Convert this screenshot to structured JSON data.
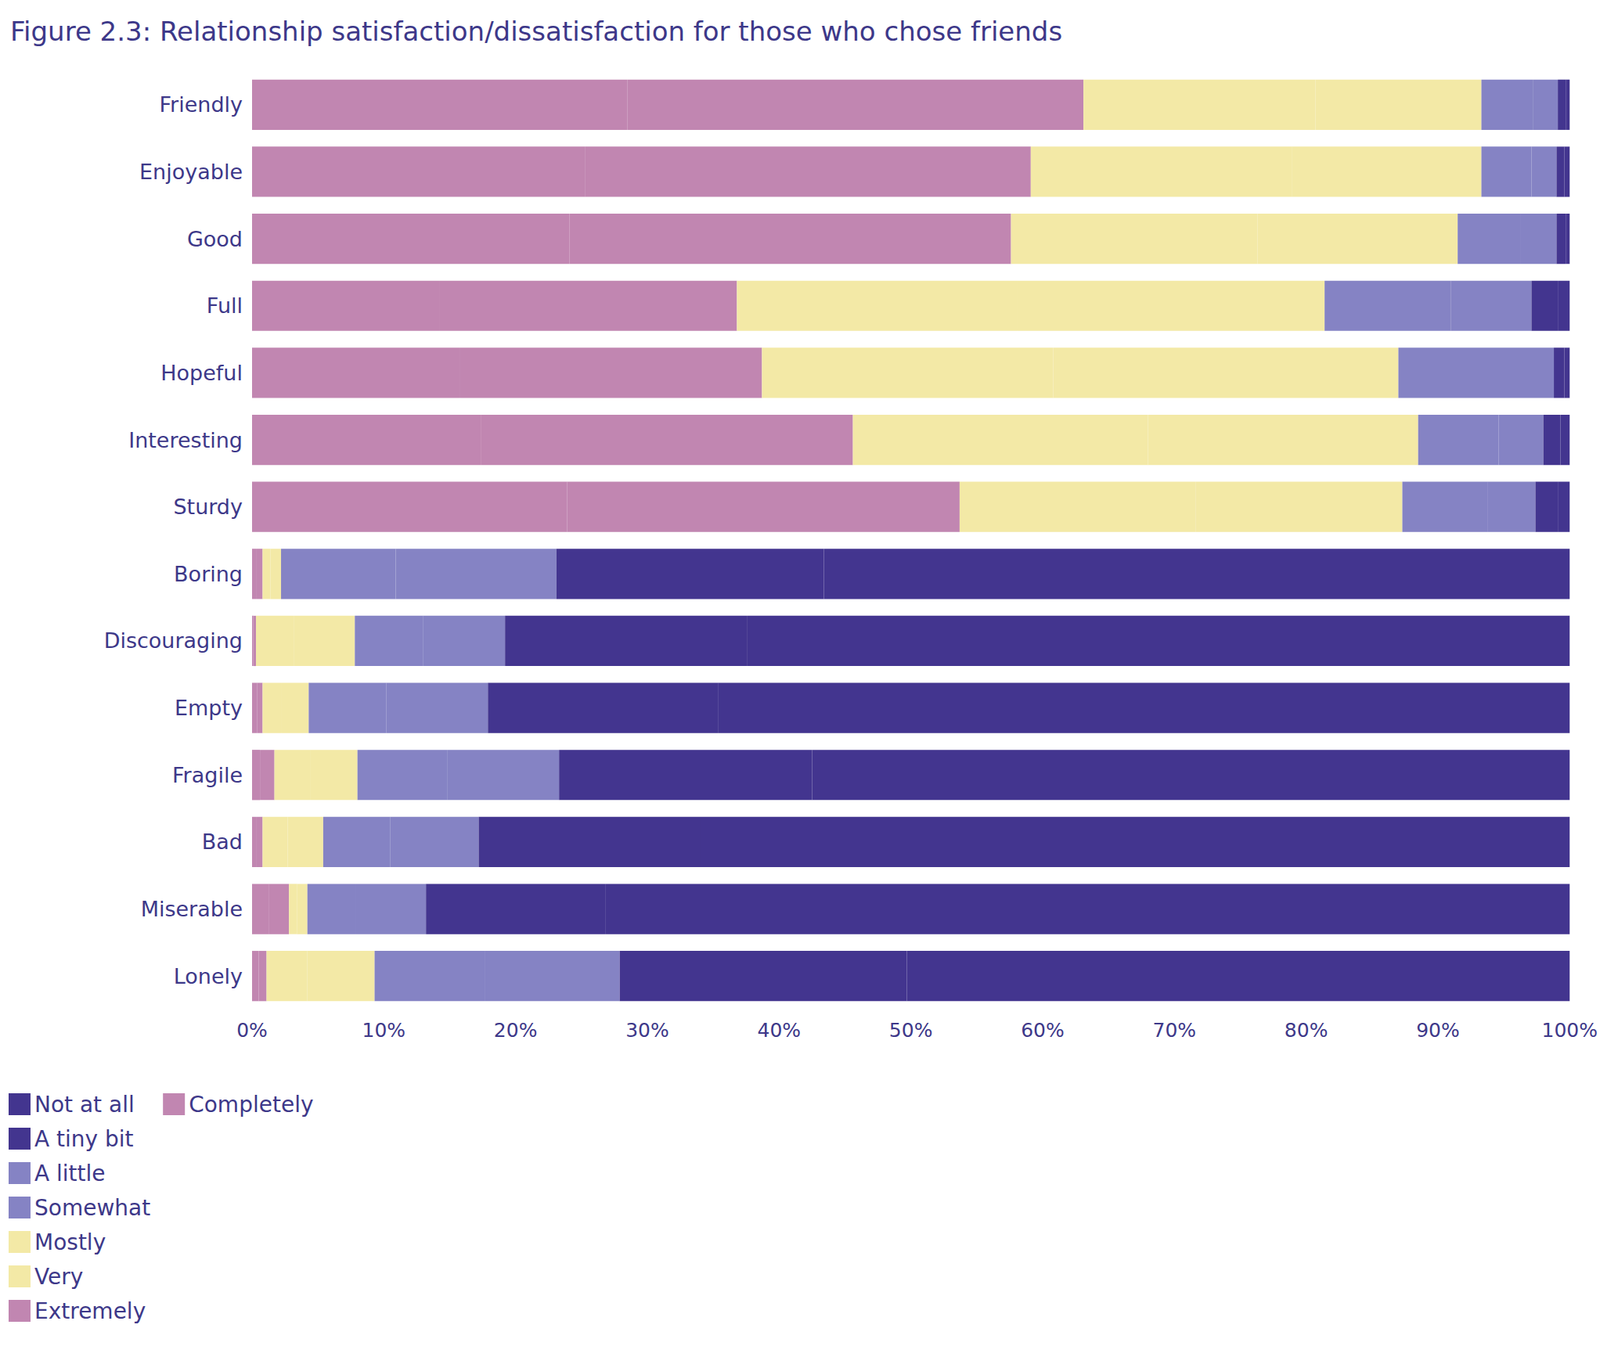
{
  "chart_data": {
    "type": "bar",
    "title": "Figure 2.3: Relationship satisfaction/dissatisfaction for those who chose friends",
    "orientation": "horizontal",
    "stacked": true,
    "grid": false,
    "legend": "bottom-left",
    "categories": [
      "Friendly",
      "Enjoyable",
      "Good",
      "Full",
      "Hopeful",
      "Interesting",
      "Sturdy",
      "Boring",
      "Discouraging",
      "Empty",
      "Fragile",
      "Bad",
      "Miserable",
      "Lonely"
    ],
    "xlim": [
      0,
      100
    ],
    "xticks": [
      {
        "value": 0,
        "label": "0%"
      },
      {
        "value": 10,
        "label": "10%"
      },
      {
        "value": 20,
        "label": "20%"
      },
      {
        "value": 30,
        "label": "30%"
      },
      {
        "value": 40,
        "label": "40%"
      },
      {
        "value": 50,
        "label": "50%"
      },
      {
        "value": 60,
        "label": "60%"
      },
      {
        "value": 70,
        "label": "70%"
      },
      {
        "value": 80,
        "label": "80%"
      },
      {
        "value": 90,
        "label": "90%"
      },
      {
        "value": 100,
        "label": "100%"
      }
    ],
    "series": [
      {
        "name": "Not at all",
        "color": "#43358f",
        "values": [
          0.3,
          0.4,
          0.3,
          0.9,
          0.4,
          0.7,
          0.9,
          56.6,
          62.4,
          64.6,
          57.5,
          65.9,
          73.2,
          50.3
        ]
      },
      {
        "name": "A tiny bit",
        "color": "#43358f",
        "values": [
          0.6,
          0.6,
          0.7,
          2.0,
          0.8,
          1.3,
          1.7,
          20.3,
          18.4,
          17.5,
          19.2,
          16.9,
          13.6,
          21.8
        ]
      },
      {
        "name": "A little",
        "color": "#8583c4",
        "values": [
          1.9,
          1.9,
          2.7,
          6.1,
          4.4,
          3.4,
          3.6,
          12.2,
          6.2,
          7.7,
          8.5,
          6.7,
          5.3,
          10.2
        ]
      },
      {
        "name": "Somewhat",
        "color": "#8583c4",
        "values": [
          3.9,
          3.8,
          4.8,
          9.6,
          7.4,
          6.1,
          6.5,
          8.7,
          5.2,
          5.9,
          6.8,
          5.1,
          3.7,
          8.4
        ]
      },
      {
        "name": "Mostly",
        "color": "#f3e9a6",
        "values": [
          12.6,
          14.4,
          15.2,
          23.3,
          26.2,
          20.5,
          15.7,
          0.8,
          4.6,
          2.1,
          3.6,
          2.7,
          0.8,
          5.1
        ]
      },
      {
        "name": "Very",
        "color": "#f3e9a6",
        "values": [
          17.6,
          19.8,
          18.7,
          21.3,
          22.1,
          22.4,
          17.9,
          0.6,
          2.9,
          1.4,
          2.7,
          1.9,
          0.6,
          3.1
        ]
      },
      {
        "name": "Extremely",
        "color": "#c186b1",
        "values": [
          34.6,
          33.8,
          33.5,
          22.6,
          22.9,
          28.2,
          29.8,
          0.5,
          0.2,
          0.4,
          1.1,
          0.5,
          1.5,
          0.6
        ]
      },
      {
        "name": "Completely",
        "color": "#c186b1",
        "values": [
          28.5,
          25.3,
          24.1,
          14.2,
          15.8,
          17.4,
          23.9,
          0.3,
          0.1,
          0.4,
          0.6,
          0.3,
          1.3,
          0.5
        ]
      }
    ]
  }
}
